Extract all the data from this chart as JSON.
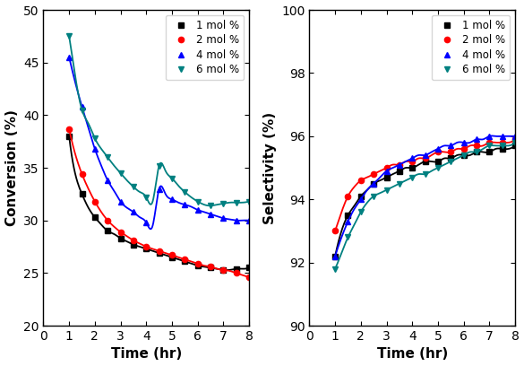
{
  "conv_time": [
    1,
    1.25,
    1.5,
    1.75,
    2,
    2.25,
    2.5,
    2.75,
    3,
    3.25,
    3.5,
    3.75,
    4,
    4.25,
    4.5,
    4.75,
    5,
    5.25,
    5.5,
    5.75,
    6,
    6.25,
    6.5,
    6.75,
    7,
    7.25,
    7.5,
    7.75,
    8
  ],
  "conv_1mol": [
    38.0,
    34.3,
    32.5,
    31.2,
    30.3,
    29.6,
    29.0,
    28.7,
    28.3,
    28.0,
    27.7,
    27.5,
    27.3,
    27.1,
    26.9,
    26.7,
    26.5,
    26.3,
    26.1,
    25.9,
    25.7,
    25.6,
    25.5,
    25.4,
    25.3,
    25.3,
    25.4,
    25.4,
    25.5
  ],
  "conv_2mol": [
    38.7,
    36.2,
    34.4,
    33.0,
    31.8,
    30.8,
    30.0,
    29.4,
    28.9,
    28.5,
    28.1,
    27.8,
    27.5,
    27.3,
    27.1,
    26.9,
    26.7,
    26.5,
    26.3,
    26.1,
    25.9,
    25.7,
    25.6,
    25.4,
    25.3,
    25.2,
    25.0,
    24.8,
    24.6
  ],
  "conv_4mol": [
    45.5,
    43.0,
    40.8,
    38.8,
    36.8,
    35.2,
    33.8,
    32.8,
    31.8,
    31.2,
    30.8,
    30.3,
    29.8,
    29.5,
    33.0,
    32.5,
    32.0,
    31.7,
    31.5,
    31.3,
    31.0,
    30.8,
    30.6,
    30.4,
    30.2,
    30.1,
    30.0,
    30.0,
    30.0
  ],
  "conv_6mol": [
    47.5,
    43.5,
    40.5,
    39.2,
    37.8,
    36.8,
    36.0,
    35.2,
    34.5,
    33.8,
    33.2,
    32.7,
    32.2,
    31.8,
    35.2,
    34.7,
    34.0,
    33.3,
    32.7,
    32.2,
    31.8,
    31.5,
    31.4,
    31.5,
    31.6,
    31.7,
    31.7,
    31.7,
    31.8
  ],
  "sel_time": [
    1,
    1.25,
    1.5,
    1.75,
    2,
    2.25,
    2.5,
    2.75,
    3,
    3.25,
    3.5,
    3.75,
    4,
    4.25,
    4.5,
    4.75,
    5,
    5.25,
    5.5,
    5.75,
    6,
    6.25,
    6.5,
    6.75,
    7,
    7.25,
    7.5,
    7.75,
    8
  ],
  "sel_1mol": [
    92.2,
    93.0,
    93.5,
    93.8,
    94.1,
    94.3,
    94.5,
    94.6,
    94.7,
    94.8,
    94.9,
    95.0,
    95.0,
    95.1,
    95.2,
    95.2,
    95.2,
    95.3,
    95.3,
    95.4,
    95.4,
    95.4,
    95.5,
    95.5,
    95.5,
    95.6,
    95.6,
    95.6,
    95.7
  ],
  "sel_2mol": [
    93.0,
    93.6,
    94.1,
    94.4,
    94.6,
    94.7,
    94.8,
    94.9,
    95.0,
    95.1,
    95.1,
    95.2,
    95.2,
    95.3,
    95.3,
    95.4,
    95.5,
    95.5,
    95.5,
    95.6,
    95.6,
    95.7,
    95.7,
    95.7,
    95.8,
    95.8,
    95.8,
    95.8,
    95.9
  ],
  "sel_4mol": [
    92.2,
    92.8,
    93.3,
    93.7,
    94.0,
    94.3,
    94.5,
    94.7,
    94.9,
    95.0,
    95.1,
    95.2,
    95.3,
    95.4,
    95.4,
    95.5,
    95.6,
    95.7,
    95.7,
    95.8,
    95.8,
    95.8,
    95.9,
    95.9,
    96.0,
    96.0,
    96.0,
    96.0,
    96.0
  ],
  "sel_6mol": [
    91.8,
    92.3,
    92.8,
    93.2,
    93.6,
    93.9,
    94.1,
    94.2,
    94.3,
    94.4,
    94.5,
    94.6,
    94.7,
    94.8,
    94.8,
    94.9,
    95.0,
    95.1,
    95.2,
    95.3,
    95.4,
    95.5,
    95.5,
    95.6,
    95.7,
    95.7,
    95.7,
    95.7,
    95.8
  ],
  "colors": [
    "#000000",
    "#ff0000",
    "#0000ff",
    "#008080"
  ],
  "markers_conv": [
    "s",
    "o",
    "^",
    "v"
  ],
  "markers_sel": [
    "s",
    "o",
    "^",
    "v"
  ],
  "labels": [
    "1 mol %",
    "2 mol %",
    "4 mol %",
    "6 mol %"
  ],
  "conv_ylim": [
    20,
    50
  ],
  "conv_yticks": [
    20,
    25,
    30,
    35,
    40,
    45,
    50
  ],
  "sel_ylim": [
    90,
    100
  ],
  "sel_yticks": [
    90,
    92,
    94,
    96,
    98,
    100
  ],
  "xlim": [
    0,
    8
  ],
  "xticks": [
    0,
    1,
    2,
    3,
    4,
    5,
    6,
    7,
    8
  ],
  "xlabel": "Time (hr)",
  "conv_ylabel": "Conversion (%)",
  "sel_ylabel": "Selectivity (%)"
}
